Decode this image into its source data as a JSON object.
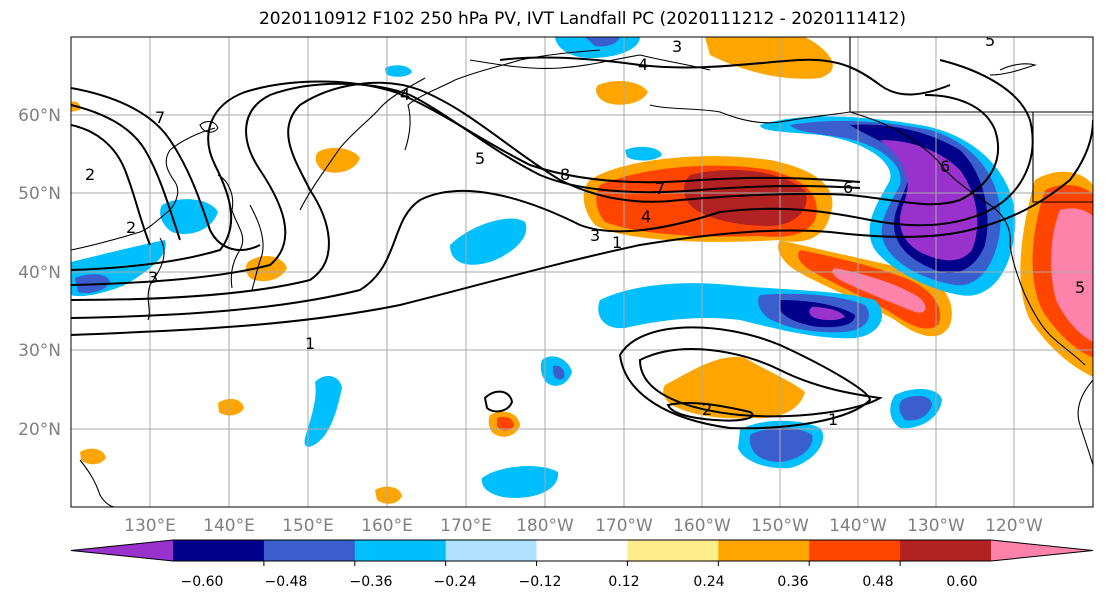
{
  "title": "2020110912 F102 250 hPa PV, IVT Landfall PC (2020111212 - 2020111412)",
  "map": {
    "lon_labels": [
      "130°E",
      "140°E",
      "150°E",
      "160°E",
      "170°E",
      "180°W",
      "170°W",
      "160°W",
      "150°W",
      "140°W",
      "130°W",
      "120°W"
    ],
    "lat_labels": [
      "60°N",
      "50°N",
      "40°N",
      "30°N",
      "20°N"
    ]
  },
  "colorbar": {
    "colors": [
      "#9932cc",
      "#00008b",
      "#3a5fcd",
      "#00bfff",
      "#b0e2ff",
      "#ffffff",
      "#ffec8b",
      "#ffa500",
      "#ff4500",
      "#b22222",
      "#ff82ab"
    ],
    "tick_labels": [
      "−0.60",
      "−0.48",
      "−0.36",
      "−0.24",
      "−0.12",
      "0.12",
      "0.24",
      "0.36",
      "0.48",
      "0.60"
    ]
  },
  "contour_labels": [
    "1",
    "2",
    "3",
    "4",
    "5",
    "6",
    "7",
    "8",
    "1",
    "2",
    "3",
    "4",
    "5",
    "6",
    "7",
    "1",
    "2",
    "3",
    "4",
    "5"
  ]
}
